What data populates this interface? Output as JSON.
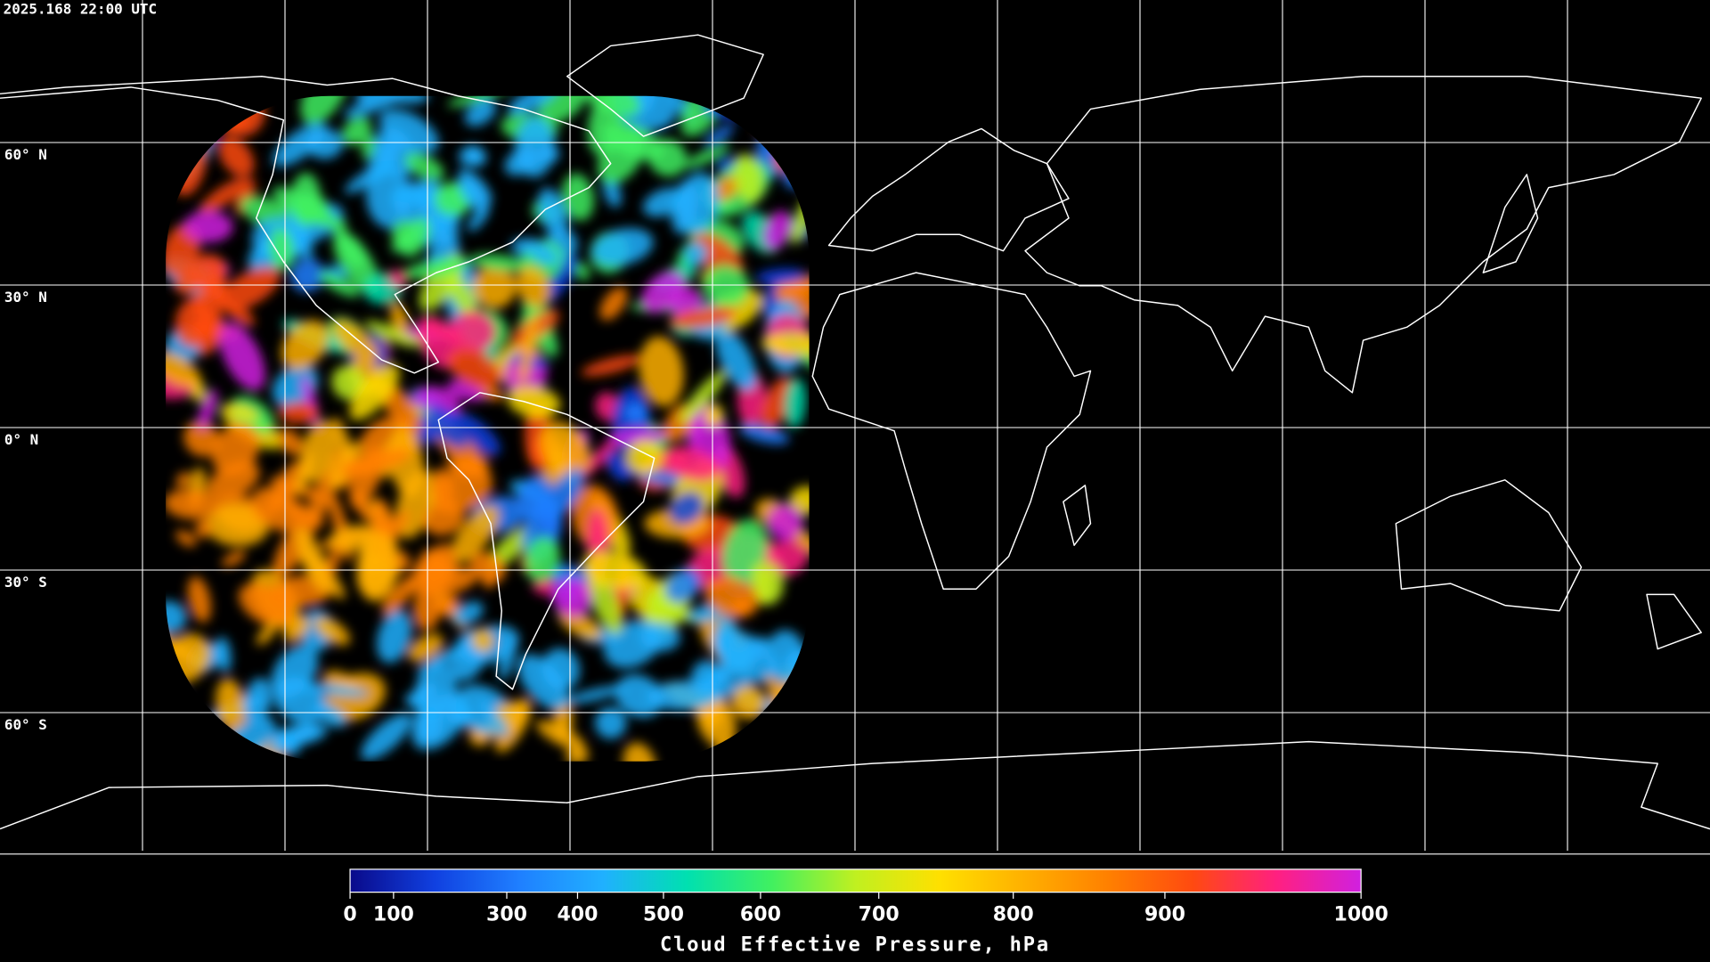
{
  "timestamp": "2025.168 22:00 UTC",
  "lat_ticks": [
    {
      "value": 60,
      "label": "60° N"
    },
    {
      "value": 30,
      "label": "30° N"
    },
    {
      "value": 0,
      "label": "0° N"
    },
    {
      "value": -30,
      "label": "30° S"
    },
    {
      "value": -60,
      "label": "60° S"
    }
  ],
  "colorbar": {
    "label": "Cloud Effective Pressure, hPa",
    "lim": [
      0,
      1000
    ],
    "ticks": [
      0,
      100,
      300,
      400,
      500,
      600,
      700,
      800,
      900,
      1000
    ],
    "colormap": [
      "#0a0a8a",
      "#1040e0",
      "#1f7fff",
      "#20b0ff",
      "#00e0b0",
      "#40f060",
      "#c0f020",
      "#ffe000",
      "#ffb000",
      "#ff8000",
      "#ff4a10",
      "#ff2080",
      "#d020e0"
    ]
  }
}
